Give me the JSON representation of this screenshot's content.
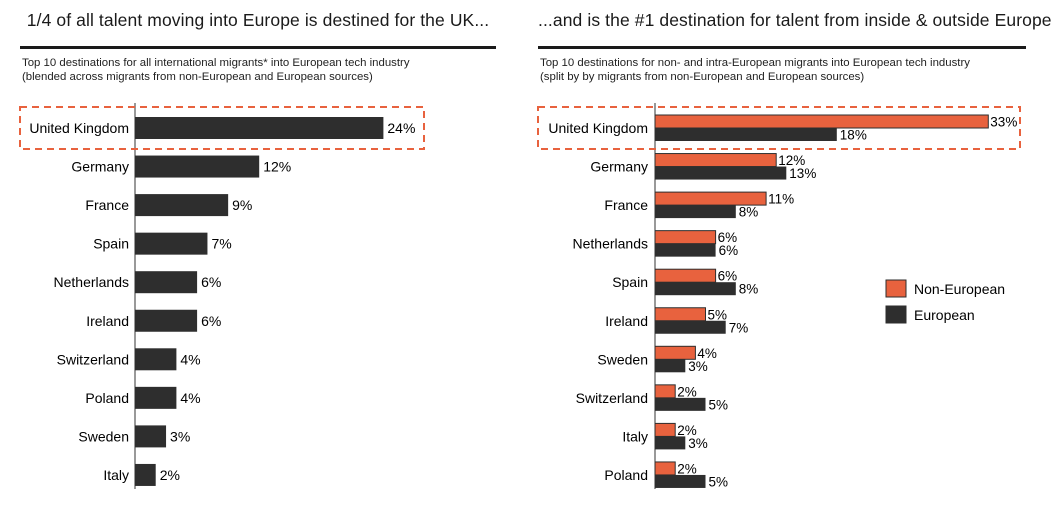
{
  "chart_data": [
    {
      "type": "bar",
      "orientation": "horizontal",
      "title": "1/4 of all talent moving into Europe is destined for the UK...",
      "subtitle_line1": "Top 10 destinations for all international migrants* into European tech industry",
      "subtitle_line2": "(blended across migrants from non-European and European sources)",
      "categories": [
        "United Kingdom",
        "Germany",
        "France",
        "Spain",
        "Netherlands",
        "Ireland",
        "Switzerland",
        "Poland",
        "Sweden",
        "Italy"
      ],
      "values": [
        24,
        12,
        9,
        7,
        6,
        6,
        4,
        4,
        3,
        2
      ],
      "value_suffix": "%",
      "highlight": "United Kingdom",
      "bar_color": "#2e2e2e",
      "highlight_color": "#e8623e"
    },
    {
      "type": "bar",
      "orientation": "horizontal",
      "title": "...and is the #1 destination for talent from inside & outside Europe",
      "subtitle_line1": "Top 10 destinations for non- and intra-European migrants into European tech industry",
      "subtitle_line2": "(split by by migrants from non-European and European sources)",
      "categories": [
        "United Kingdom",
        "Germany",
        "France",
        "Netherlands",
        "Spain",
        "Ireland",
        "Sweden",
        "Switzerland",
        "Italy",
        "Poland"
      ],
      "series": [
        {
          "name": "Non-European",
          "values": [
            33,
            12,
            11,
            6,
            6,
            5,
            4,
            2,
            2,
            2
          ],
          "color": "#e8623e"
        },
        {
          "name": "European",
          "values": [
            18,
            13,
            8,
            6,
            8,
            7,
            3,
            5,
            3,
            5
          ],
          "color": "#2e2e2e"
        }
      ],
      "value_suffix": "%",
      "highlight": "United Kingdom",
      "legend": "right"
    }
  ]
}
